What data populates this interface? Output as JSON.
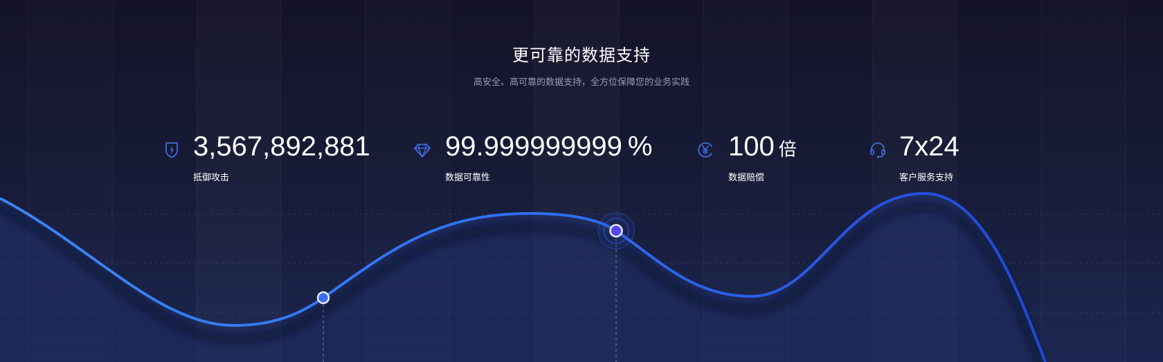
{
  "header": {
    "title": "更可靠的数据支持",
    "subtitle": "高安全、高可靠的数据支持，全方位保障您的业务实践"
  },
  "stats": [
    {
      "icon": "shield-lightning-icon",
      "value": "3,567,892,881",
      "unit": "",
      "label": "抵御攻击"
    },
    {
      "icon": "diamond-icon",
      "value": "99.999999999",
      "unit": "%",
      "label": "数据可靠性"
    },
    {
      "icon": "yuan-coin-icon",
      "value": "100",
      "unit": "倍",
      "label": "数据赔偿"
    },
    {
      "icon": "headset-icon",
      "value": "7x24",
      "unit": "",
      "label": "客户服务支持"
    }
  ],
  "colors": {
    "background_top": "#141328",
    "background_bottom": "#1b2650",
    "accent_blue": "#2f6ff5",
    "icon_blue": "#3d6de0",
    "subtitle_gray": "#9a9cb4"
  }
}
